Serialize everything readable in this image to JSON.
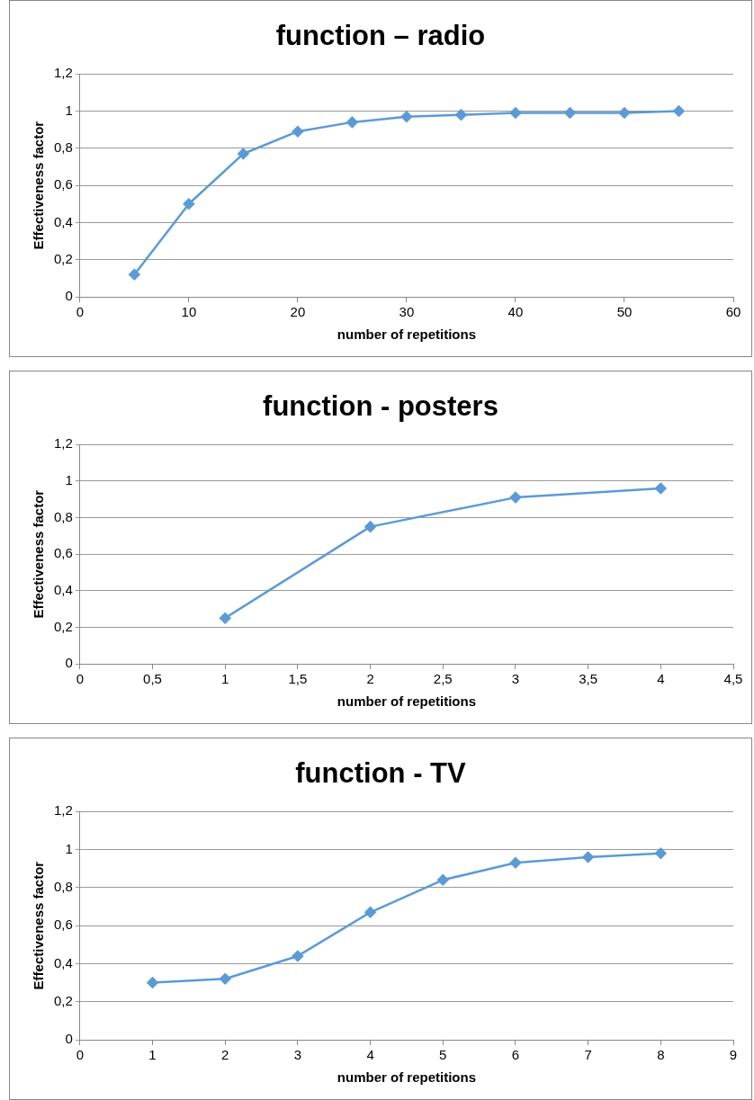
{
  "chart_data": [
    {
      "type": "line",
      "title": "function – radio",
      "xlabel": "number of repetitions",
      "ylabel": "Effectiveness factor",
      "x": [
        5,
        10,
        15,
        20,
        25,
        30,
        35,
        40,
        45,
        50,
        55
      ],
      "series": [
        {
          "color": "#5b9bd5",
          "values": [
            0.12,
            0.5,
            0.77,
            0.89,
            0.94,
            0.97,
            0.98,
            0.99,
            0.99,
            0.99,
            1.0
          ]
        }
      ],
      "xlim": [
        0,
        60
      ],
      "xticks": [
        {
          "value": 0,
          "label": "0"
        },
        10,
        20,
        30,
        40,
        50,
        60
      ],
      "ylim": [
        0,
        1.2
      ],
      "yticks": [
        {
          "value": 0,
          "label": "0"
        },
        {
          "value": 0.2,
          "label": "0,2"
        },
        {
          "value": 0.4,
          "label": "0,4"
        },
        {
          "value": 0.6,
          "label": "0,6"
        },
        {
          "value": 0.8,
          "label": "0,8"
        },
        {
          "value": 1,
          "label": "1"
        },
        {
          "value": 1.2,
          "label": "1,2"
        }
      ],
      "grid": "y",
      "legend": false,
      "marker": "diamond",
      "line_style": "solid"
    },
    {
      "type": "line",
      "title": "function - posters",
      "xlabel": "number of repetitions",
      "ylabel": "Effectiveness factor",
      "x": [
        1,
        2,
        3,
        4
      ],
      "series": [
        {
          "color": "#5b9bd5",
          "values": [
            0.25,
            0.75,
            0.91,
            0.96
          ]
        }
      ],
      "xlim": [
        0,
        4.5
      ],
      "xticks": [
        {
          "value": 0,
          "label": "0"
        },
        {
          "value": 0.5,
          "label": "0,5"
        },
        1,
        {
          "value": 1.5,
          "label": "1,5"
        },
        2,
        {
          "value": 2.5,
          "label": "2,5"
        },
        3,
        {
          "value": 3.5,
          "label": "3,5"
        },
        4,
        {
          "value": 4.5,
          "label": "4,5"
        }
      ],
      "ylim": [
        0,
        1.2
      ],
      "yticks": [
        {
          "value": 0,
          "label": "0"
        },
        {
          "value": 0.2,
          "label": "0,2"
        },
        {
          "value": 0.4,
          "label": "0,4"
        },
        {
          "value": 0.6,
          "label": "0,6"
        },
        {
          "value": 0.8,
          "label": "0,8"
        },
        {
          "value": 1,
          "label": "1"
        },
        {
          "value": 1.2,
          "label": "1,2"
        }
      ],
      "grid": "y",
      "legend": false,
      "marker": "diamond",
      "line_style": "solid"
    },
    {
      "type": "line",
      "title": "function - TV",
      "xlabel": "number of repetitions",
      "ylabel": "Effectiveness factor",
      "x": [
        1,
        2,
        3,
        4,
        5,
        6,
        7,
        8
      ],
      "series": [
        {
          "color": "#5b9bd5",
          "values": [
            0.3,
            0.32,
            0.44,
            0.67,
            0.84,
            0.93,
            0.96,
            0.98
          ]
        }
      ],
      "xlim": [
        0,
        9
      ],
      "xticks": [
        {
          "value": 0,
          "label": "0"
        },
        1,
        2,
        3,
        4,
        5,
        6,
        7,
        8,
        9
      ],
      "ylim": [
        0,
        1.2
      ],
      "yticks": [
        {
          "value": 0,
          "label": "0"
        },
        {
          "value": 0.2,
          "label": "0,2"
        },
        {
          "value": 0.4,
          "label": "0,4"
        },
        {
          "value": 0.6,
          "label": "0,6"
        },
        {
          "value": 0.8,
          "label": "0,8"
        },
        {
          "value": 1,
          "label": "1"
        },
        {
          "value": 1.2,
          "label": "1,2"
        }
      ],
      "grid": "y",
      "legend": false,
      "marker": "diamond",
      "line_style": "solid"
    }
  ]
}
